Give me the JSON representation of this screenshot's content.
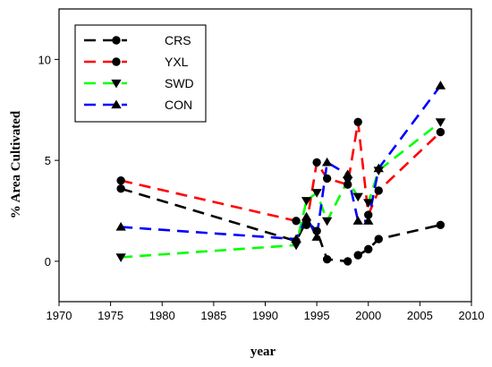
{
  "chart_data": {
    "type": "line",
    "xlabel": "year",
    "ylabel": "% Area Cultivated",
    "xlim": [
      1970,
      2010
    ],
    "ylim": [
      -2,
      12.5
    ],
    "xticks": [
      "1970",
      "1975",
      "1980",
      "1985",
      "1990",
      "1995",
      "2000",
      "2005",
      "2010"
    ],
    "yticks": [
      "0",
      "5",
      "10"
    ],
    "grid": false,
    "legend_position": "top-left",
    "series": [
      {
        "name": "CRS",
        "color": "#000000",
        "marker": "circle",
        "x": [
          1976,
          1993,
          1994,
          1995,
          1996,
          1998,
          1999,
          2000,
          2001,
          2007
        ],
        "y": [
          3.6,
          1.0,
          2.0,
          1.5,
          0.1,
          0.0,
          0.3,
          0.6,
          1.1,
          1.8
        ]
      },
      {
        "name": "YXL",
        "color": "#ff0000",
        "marker": "circle",
        "x": [
          1976,
          1993,
          1994,
          1995,
          1996,
          1998,
          1999,
          2000,
          2001,
          2007
        ],
        "y": [
          4.0,
          2.0,
          1.8,
          4.9,
          4.1,
          3.8,
          6.9,
          2.3,
          3.5,
          6.4
        ]
      },
      {
        "name": "SWD",
        "color": "#00ff00",
        "marker": "triangle-down",
        "x": [
          1976,
          1993,
          1994,
          1995,
          1996,
          1998,
          1999,
          2000,
          2001,
          2007
        ],
        "y": [
          0.2,
          0.8,
          3.0,
          3.4,
          2.0,
          4.0,
          3.2,
          2.9,
          4.5,
          6.9
        ]
      },
      {
        "name": "CON",
        "color": "#0000ff",
        "marker": "triangle-up",
        "x": [
          1976,
          1993,
          1994,
          1995,
          1996,
          1998,
          1999,
          2000,
          2001,
          2007
        ],
        "y": [
          1.7,
          1.1,
          2.2,
          1.2,
          4.9,
          4.3,
          2.0,
          2.0,
          4.6,
          8.7
        ]
      }
    ]
  }
}
